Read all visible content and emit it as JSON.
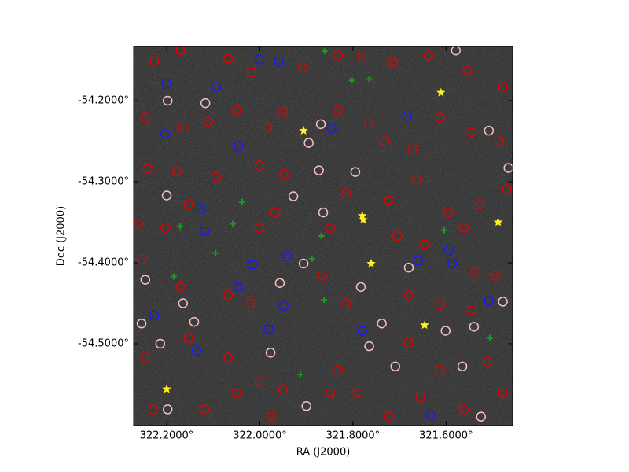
{
  "chart_data": {
    "type": "scatter",
    "xlabel": "RA (J2000)",
    "ylabel": "Dec (J2000)",
    "xlim": [
      322.271,
      321.457
    ],
    "ylim": [
      -54.601,
      -54.133
    ],
    "xticks": [
      {
        "value": 322.2,
        "label": "322.2000°"
      },
      {
        "value": 322.0,
        "label": "322.0000°"
      },
      {
        "value": 321.8,
        "label": "321.8000°"
      },
      {
        "value": 321.6,
        "label": "321.6000°"
      }
    ],
    "yticks": [
      {
        "value": -54.2,
        "label": "-54.2000°"
      },
      {
        "value": -54.3,
        "label": "-54.3000°"
      },
      {
        "value": -54.4,
        "label": "-54.4000°"
      },
      {
        "value": -54.5,
        "label": "-54.5000°"
      }
    ],
    "background": "#262626",
    "series": [
      {
        "color": "#e00000",
        "marker": "circle",
        "x": [
          322.227,
          322.17,
          322.068,
          322.018,
          321.908,
          321.832,
          321.781,
          321.714,
          321.638,
          321.554,
          321.478,
          322.246,
          322.166,
          322.111,
          322.051,
          321.984,
          321.95,
          321.832,
          321.765,
          321.731,
          321.672,
          321.613,
          321.545,
          321.486,
          322.241,
          322.178,
          322.094,
          322.001,
          321.947,
          321.815,
          321.722,
          321.663,
          321.596,
          321.528,
          321.469,
          322.261,
          322.203,
          322.153,
          322.001,
          321.967,
          321.849,
          321.705,
          321.646,
          321.562,
          321.495,
          322.254,
          322.17,
          322.068,
          322.018,
          321.866,
          321.815,
          321.68,
          321.613,
          321.537,
          322.246,
          322.153,
          322.068,
          322.001,
          321.95,
          321.832,
          321.79,
          321.68,
          321.613,
          321.511,
          322.229,
          322.119,
          322.051,
          321.976,
          321.849,
          321.722,
          321.655,
          321.562,
          321.478,
          321.545
        ],
        "y": [
          -54.151,
          -54.138,
          -54.148,
          -54.165,
          -54.159,
          -54.144,
          -54.146,
          -54.153,
          -54.144,
          -54.163,
          -54.183,
          -54.221,
          -54.233,
          -54.226,
          -54.212,
          -54.233,
          -54.214,
          -54.212,
          -54.228,
          -54.25,
          -54.26,
          -54.221,
          -54.239,
          -54.25,
          -54.284,
          -54.287,
          -54.294,
          -54.28,
          -54.291,
          -54.314,
          -54.323,
          -54.297,
          -54.338,
          -54.328,
          -54.309,
          -54.352,
          -54.357,
          -54.328,
          -54.357,
          -54.338,
          -54.357,
          -54.367,
          -54.377,
          -54.357,
          -54.416,
          -54.396,
          -54.43,
          -54.44,
          -54.45,
          -54.416,
          -54.45,
          -54.44,
          -54.452,
          -54.411,
          -54.517,
          -54.493,
          -54.517,
          -54.547,
          -54.556,
          -54.532,
          -54.561,
          -54.498,
          -54.532,
          -54.522,
          -54.581,
          -54.581,
          -54.561,
          -54.59,
          -54.561,
          -54.59,
          -54.566,
          -54.581,
          -54.561,
          -54.459
        ]
      },
      {
        "color": "#f4c2c2",
        "marker": "circle",
        "x": [
          322.198,
          322.117,
          321.869,
          321.895,
          321.873,
          321.795,
          321.864,
          321.928,
          322.2,
          322.246,
          322.165,
          322.254,
          322.214,
          321.957,
          321.906,
          321.783,
          321.68,
          321.738,
          321.709,
          321.601,
          321.54,
          321.565,
          321.478,
          321.466,
          321.579,
          321.508,
          321.525,
          321.9,
          322.198,
          321.765,
          321.977,
          322.141
        ],
        "y": [
          -54.2,
          -54.203,
          -54.229,
          -54.252,
          -54.286,
          -54.288,
          -54.338,
          -54.318,
          -54.317,
          -54.421,
          -54.45,
          -54.475,
          -54.5,
          -54.425,
          -54.401,
          -54.43,
          -54.406,
          -54.475,
          -54.528,
          -54.484,
          -54.479,
          -54.528,
          -54.448,
          -54.283,
          -54.138,
          -54.237,
          -54.59,
          -54.577,
          -54.581,
          -54.503,
          -54.511,
          -54.473
        ]
      },
      {
        "color": "#1a1aff",
        "marker": "circle",
        "x": [
          322.2,
          322.094,
          322.001,
          321.959,
          321.684,
          321.846,
          322.046,
          322.203,
          322.126,
          322.119,
          322.016,
          322.046,
          321.942,
          321.594,
          321.587,
          321.508,
          321.949,
          321.981,
          321.78,
          322.136,
          321.633,
          322.227,
          321.66
        ],
        "y": [
          -54.179,
          -54.183,
          -54.149,
          -54.152,
          -54.219,
          -54.234,
          -54.256,
          -54.241,
          -54.333,
          -54.361,
          -54.402,
          -54.43,
          -54.392,
          -54.384,
          -54.401,
          -54.447,
          -54.453,
          -54.482,
          -54.484,
          -54.509,
          -54.588,
          -54.465,
          -54.397
        ]
      },
      {
        "color": "#1f9a1f",
        "marker": "plus",
        "x": [
          321.861,
          321.802,
          321.765,
          322.038,
          322.171,
          322.058,
          321.868,
          322.095,
          322.185,
          321.888,
          321.604,
          321.862,
          321.913,
          321.506
        ],
        "y": [
          -54.139,
          -54.175,
          -54.173,
          -54.325,
          -54.355,
          -54.352,
          -54.367,
          -54.388,
          -54.417,
          -54.395,
          -54.36,
          -54.446,
          -54.538,
          -54.493
        ]
      },
      {
        "color": "#ffee22",
        "marker": "star",
        "x": [
          321.906,
          321.611,
          321.78,
          321.778,
          321.488,
          321.761,
          321.646,
          322.2
        ],
        "y": [
          -54.237,
          -54.19,
          -54.342,
          -54.347,
          -54.35,
          -54.401,
          -54.477,
          -54.556
        ]
      }
    ]
  }
}
